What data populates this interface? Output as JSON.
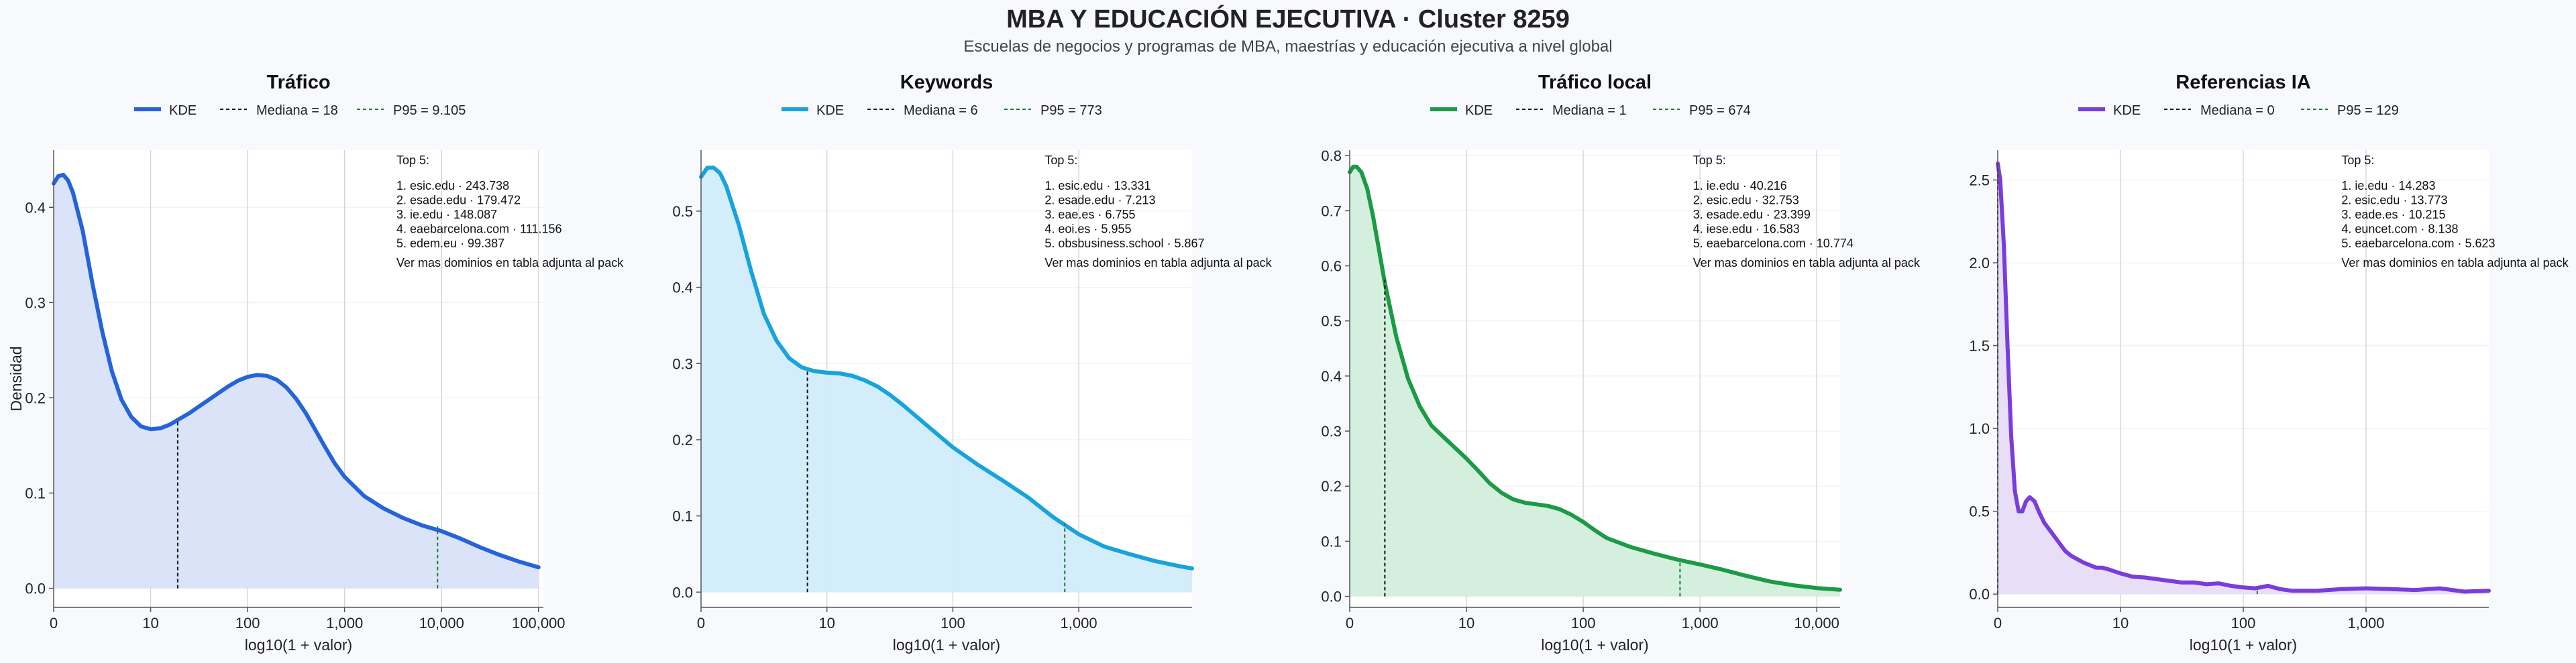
{
  "page": {
    "title": "MBA Y EDUCACIÓN EJECUTIVA · Cluster 8259",
    "subtitle": "Escuelas de negocios y programas de MBA, maestrías y educación ejecutiva a nivel global"
  },
  "chart_data": [
    {
      "type": "area",
      "title": "Tráfico",
      "xlabel": "log10(1 + valor)",
      "ylabel": "Densidad",
      "xlim": [
        0,
        5.05
      ],
      "ylim": [
        -0.02,
        0.46
      ],
      "xticks": [
        0,
        1,
        2,
        3,
        4,
        5
      ],
      "xtick_labels": [
        "0",
        "10",
        "100",
        "1,000",
        "10,000",
        "100,000"
      ],
      "yticks": [
        0,
        0.1,
        0.2,
        0.3,
        0.4
      ],
      "ytick_labels": [
        "0.0",
        "0.1",
        "0.2",
        "0.3",
        "0.4"
      ],
      "color": "#2563d9",
      "fill": "#d8e1f8",
      "legend": [
        "KDE",
        "Mediana = 18",
        "P95 = 9.105"
      ],
      "median_x": 1.279,
      "median_y": 0.176,
      "p95_x": 3.959,
      "p95_y": 0.065,
      "top_header": "Top 5:",
      "top": [
        "1. esic.edu · 243.738",
        "2. esade.edu · 179.472",
        "3. ie.edu · 148.087",
        "4. eaebarcelona.com · 111.156",
        "5. edem.eu · 99.387"
      ],
      "note": "Ver mas dominios en tabla adjunta al pack",
      "curve_x": [
        0,
        0.05,
        0.1,
        0.15,
        0.2,
        0.3,
        0.4,
        0.5,
        0.6,
        0.7,
        0.8,
        0.9,
        1.0,
        1.1,
        1.2,
        1.3,
        1.4,
        1.5,
        1.6,
        1.7,
        1.8,
        1.9,
        2.0,
        2.1,
        2.2,
        2.3,
        2.4,
        2.5,
        2.6,
        2.7,
        2.8,
        2.9,
        3.0,
        3.2,
        3.4,
        3.6,
        3.8,
        4.0,
        4.2,
        4.4,
        4.6,
        4.8,
        5.0
      ],
      "curve_y": [
        0.425,
        0.433,
        0.434,
        0.428,
        0.415,
        0.375,
        0.32,
        0.27,
        0.228,
        0.198,
        0.18,
        0.17,
        0.167,
        0.168,
        0.172,
        0.178,
        0.184,
        0.191,
        0.198,
        0.205,
        0.212,
        0.218,
        0.222,
        0.224,
        0.223,
        0.219,
        0.211,
        0.199,
        0.184,
        0.166,
        0.148,
        0.131,
        0.117,
        0.097,
        0.084,
        0.074,
        0.066,
        0.06,
        0.052,
        0.043,
        0.035,
        0.028,
        0.022
      ]
    },
    {
      "type": "area",
      "title": "Keywords",
      "xlabel": "log10(1 + valor)",
      "ylabel": "",
      "xlim": [
        0,
        3.9
      ],
      "ylim": [
        -0.02,
        0.58
      ],
      "xticks": [
        0,
        1,
        2,
        3
      ],
      "xtick_labels": [
        "0",
        "10",
        "100",
        "1,000"
      ],
      "yticks": [
        0,
        0.1,
        0.2,
        0.3,
        0.4,
        0.5
      ],
      "ytick_labels": [
        "0.0",
        "0.1",
        "0.2",
        "0.3",
        "0.4",
        "0.5"
      ],
      "color": "#18a3dc",
      "fill": "#d1ecfa",
      "legend": [
        "KDE",
        "Mediana = 6",
        "P95 = 773"
      ],
      "median_x": 0.845,
      "median_y": 0.29,
      "p95_x": 2.889,
      "p95_y": 0.09,
      "top_header": "Top 5:",
      "top": [
        "1. esic.edu · 13.331",
        "2. esade.edu · 7.213",
        "3. eae.es · 6.755",
        "4. eoi.es · 5.955",
        "5. obsbusiness.school · 5.867"
      ],
      "note": "Ver mas dominios en tabla adjunta al pack",
      "curve_x": [
        0,
        0.05,
        0.1,
        0.15,
        0.2,
        0.3,
        0.4,
        0.5,
        0.6,
        0.7,
        0.8,
        0.9,
        1.0,
        1.1,
        1.2,
        1.3,
        1.4,
        1.5,
        1.6,
        1.7,
        1.8,
        1.9,
        2.0,
        2.2,
        2.4,
        2.6,
        2.8,
        3.0,
        3.2,
        3.4,
        3.6,
        3.8,
        3.9
      ],
      "curve_y": [
        0.545,
        0.557,
        0.557,
        0.55,
        0.533,
        0.482,
        0.42,
        0.365,
        0.33,
        0.307,
        0.295,
        0.29,
        0.288,
        0.287,
        0.284,
        0.278,
        0.27,
        0.259,
        0.246,
        0.232,
        0.218,
        0.204,
        0.19,
        0.167,
        0.146,
        0.124,
        0.098,
        0.076,
        0.06,
        0.05,
        0.041,
        0.034,
        0.031
      ]
    },
    {
      "type": "area",
      "title": "Tráfico local",
      "xlabel": "log10(1 + valor)",
      "ylabel": "",
      "xlim": [
        0,
        4.2
      ],
      "ylim": [
        -0.02,
        0.81
      ],
      "xticks": [
        0,
        1,
        2,
        3,
        4
      ],
      "xtick_labels": [
        "0",
        "10",
        "100",
        "1,000",
        "10,000"
      ],
      "yticks": [
        0,
        0.1,
        0.2,
        0.3,
        0.4,
        0.5,
        0.6,
        0.7,
        0.8
      ],
      "ytick_labels": [
        "0.0",
        "0.1",
        "0.2",
        "0.3",
        "0.4",
        "0.5",
        "0.6",
        "0.7",
        "0.8"
      ],
      "color": "#1c9a46",
      "fill": "#d2eedb",
      "legend": [
        "KDE",
        "Mediana = 1",
        "P95 = 674"
      ],
      "median_x": 0.301,
      "median_y": 0.575,
      "p95_x": 2.829,
      "p95_y": 0.065,
      "top_header": "Top 5:",
      "top": [
        "1. ie.edu · 40.216",
        "2. esic.edu · 32.753",
        "3. esade.edu · 23.399",
        "4. iese.edu · 16.583",
        "5. eaebarcelona.com · 10.774"
      ],
      "note": "Ver mas dominios en tabla adjunta al pack",
      "curve_x": [
        0,
        0.03,
        0.06,
        0.1,
        0.15,
        0.2,
        0.25,
        0.3,
        0.4,
        0.5,
        0.6,
        0.7,
        0.8,
        0.9,
        1.0,
        1.1,
        1.2,
        1.3,
        1.4,
        1.5,
        1.6,
        1.7,
        1.8,
        1.9,
        2.0,
        2.1,
        2.2,
        2.4,
        2.6,
        2.8,
        3.0,
        3.2,
        3.4,
        3.6,
        3.8,
        4.0,
        4.2
      ],
      "curve_y": [
        0.77,
        0.78,
        0.78,
        0.77,
        0.74,
        0.69,
        0.63,
        0.57,
        0.47,
        0.395,
        0.345,
        0.31,
        0.29,
        0.27,
        0.25,
        0.228,
        0.205,
        0.188,
        0.176,
        0.17,
        0.167,
        0.164,
        0.158,
        0.148,
        0.135,
        0.12,
        0.106,
        0.09,
        0.078,
        0.067,
        0.058,
        0.048,
        0.037,
        0.027,
        0.02,
        0.015,
        0.012
      ]
    },
    {
      "type": "area",
      "title": "Referencias IA",
      "xlabel": "log10(1 + valor)",
      "ylabel": "",
      "xlim": [
        0,
        4.0
      ],
      "ylim": [
        -0.08,
        2.68
      ],
      "xticks": [
        0,
        1,
        2,
        3
      ],
      "xtick_labels": [
        "0",
        "10",
        "100",
        "1,000"
      ],
      "yticks": [
        0,
        0.5,
        1.0,
        1.5,
        2.0,
        2.5
      ],
      "ytick_labels": [
        "0.0",
        "0.5",
        "1.0",
        "1.5",
        "2.0",
        "2.5"
      ],
      "color": "#7a3ddb",
      "fill": "#e8dcf8",
      "legend": [
        "KDE",
        "Mediana = 0",
        "P95 = 129"
      ],
      "median_x": 0,
      "median_y": 2.6,
      "p95_x": 2.114,
      "p95_y": 0.045,
      "top_header": "Top 5:",
      "top": [
        "1. ie.edu · 14.283",
        "2. esic.edu · 13.773",
        "3. eade.es · 10.215",
        "4. euncet.com · 8.138",
        "5. eaebarcelona.com · 5.623"
      ],
      "note": "Ver mas dominios en tabla adjunta al pack",
      "curve_x": [
        0,
        0.02,
        0.05,
        0.08,
        0.11,
        0.14,
        0.17,
        0.2,
        0.23,
        0.26,
        0.3,
        0.34,
        0.38,
        0.42,
        0.46,
        0.5,
        0.55,
        0.6,
        0.65,
        0.7,
        0.75,
        0.8,
        0.85,
        0.9,
        1.0,
        1.1,
        1.2,
        1.3,
        1.4,
        1.5,
        1.6,
        1.7,
        1.8,
        1.9,
        2.0,
        2.1,
        2.2,
        2.3,
        2.4,
        2.6,
        2.8,
        3.0,
        3.2,
        3.4,
        3.6,
        3.8,
        4.0
      ],
      "curve_y": [
        2.6,
        2.5,
        2.1,
        1.5,
        0.95,
        0.62,
        0.5,
        0.5,
        0.56,
        0.585,
        0.56,
        0.49,
        0.43,
        0.39,
        0.35,
        0.31,
        0.26,
        0.23,
        0.21,
        0.19,
        0.175,
        0.16,
        0.16,
        0.15,
        0.125,
        0.105,
        0.1,
        0.09,
        0.08,
        0.07,
        0.07,
        0.06,
        0.065,
        0.05,
        0.04,
        0.035,
        0.05,
        0.03,
        0.02,
        0.02,
        0.03,
        0.035,
        0.03,
        0.025,
        0.035,
        0.015,
        0.02
      ]
    }
  ]
}
